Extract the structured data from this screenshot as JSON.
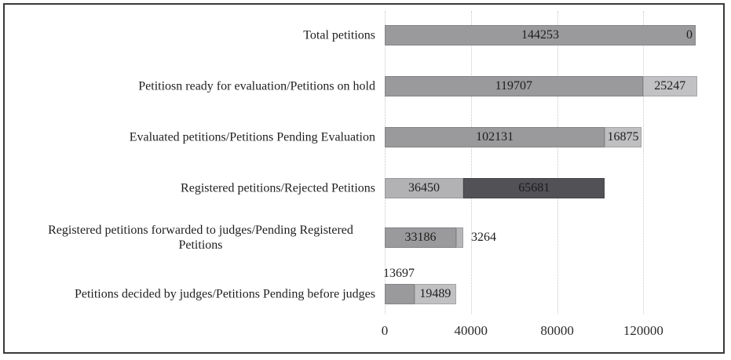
{
  "chart_data": {
    "type": "bar",
    "orientation": "horizontal",
    "stacked": true,
    "title": "",
    "xlabel": "",
    "ylabel": "",
    "xlim": [
      0,
      153000
    ],
    "grid": "vertical-dotted",
    "legend": "none",
    "x_ticks": [
      {
        "value": 0,
        "label": "0"
      },
      {
        "value": 40000,
        "label": "40000"
      },
      {
        "value": 80000,
        "label": "80000"
      },
      {
        "value": 120000,
        "label": "120000"
      }
    ],
    "rows": [
      {
        "category": "Total petitions",
        "segments": [
          {
            "value": 144253,
            "label": "144253",
            "color": "#9a9a9c",
            "label_pos": "inside"
          },
          {
            "value": 0,
            "label": "0",
            "color": "#c2c2c4",
            "label_pos": "end"
          }
        ]
      },
      {
        "category": "Petitiosn ready for evaluation/Petitions on hold",
        "segments": [
          {
            "value": 119707,
            "label": "119707",
            "color": "#9a9a9c",
            "label_pos": "inside"
          },
          {
            "value": 25247,
            "label": "25247",
            "color": "#c2c2c4",
            "label_pos": "inside"
          }
        ]
      },
      {
        "category": "Evaluated petitions/Petitions Pending Evaluation",
        "segments": [
          {
            "value": 102131,
            "label": "102131",
            "color": "#9a9a9c",
            "label_pos": "inside"
          },
          {
            "value": 16875,
            "label": "16875",
            "color": "#bfbfc1",
            "label_pos": "inside"
          }
        ]
      },
      {
        "category": "Registered petitions/Rejected Petitions",
        "segments": [
          {
            "value": 36450,
            "label": "36450",
            "color": "#b2b2b4",
            "label_pos": "inside"
          },
          {
            "value": 65681,
            "label": "65681",
            "color": "#515156",
            "label_pos": "inside"
          }
        ]
      },
      {
        "category": "Registered petitions forwarded to judges/Pending Registered Petitions",
        "segments": [
          {
            "value": 33186,
            "label": "33186",
            "color": "#9a9a9c",
            "label_pos": "inside"
          },
          {
            "value": 3264,
            "label": "3264",
            "color": "#b6b6b8",
            "label_pos": "outside"
          }
        ]
      },
      {
        "category": "Petitions decided by judges/Petitions Pending before judges",
        "segments": [
          {
            "value": 13697,
            "label": "13697",
            "color": "#9a9a9c",
            "label_pos": "above"
          },
          {
            "value": 19489,
            "label": "19489",
            "color": "#c0c0c2",
            "label_pos": "inside"
          }
        ]
      }
    ]
  },
  "colors": {
    "frame_border": "#3a3a3a",
    "gridline": "#c6c6c6",
    "text": "#1e1e1e",
    "background": "#ffffff"
  }
}
